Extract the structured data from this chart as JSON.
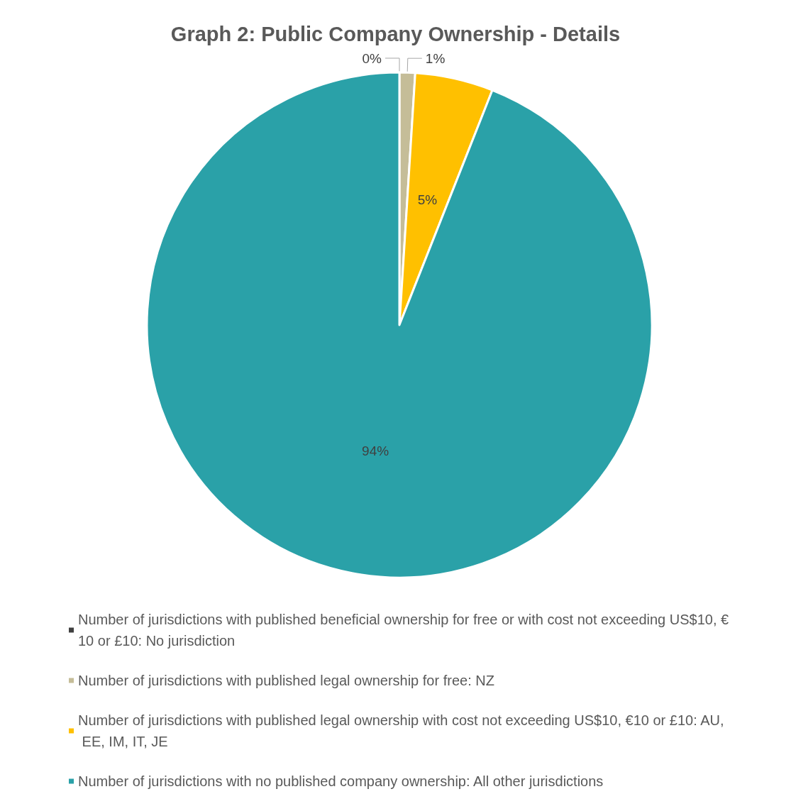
{
  "chart_data": {
    "type": "pie",
    "title": "Graph 2: Public Company Ownership - Details",
    "categories": [
      "Number of jurisdictions with published beneficial ownership for free or with cost not exceeding US$10, €10 or £10: No jurisdiction",
      "Number of jurisdictions with published legal ownership for free: NZ",
      "Number of jurisdictions with published legal ownership with cost not exceeding US$10, €10 or £10: AU, EE, IM, IT, JE",
      "Number of jurisdictions with no published company ownership: All other jurisdictions"
    ],
    "values": [
      0,
      1,
      5,
      94
    ],
    "value_labels": [
      "0%",
      "1%",
      "5%",
      "94%"
    ],
    "colors": [
      "#404040",
      "#c5bd98",
      "#ffc000",
      "#2aa1a8"
    ],
    "legend": "bottom"
  }
}
